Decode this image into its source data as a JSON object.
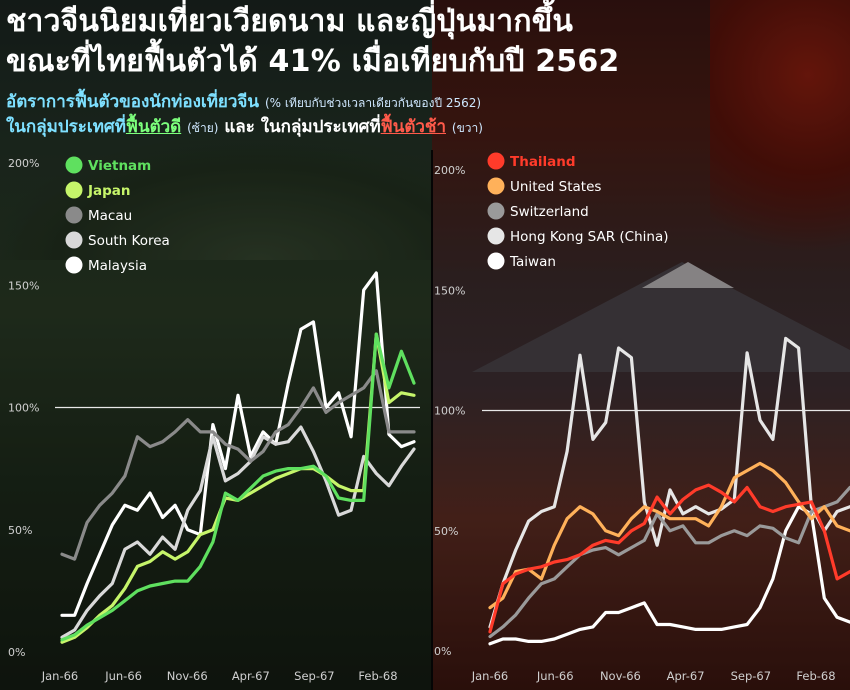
{
  "title": {
    "line1": "ชาวจีนนิยมเที่ยวเวียดนาม และญี่ปุ่นมากขึ้น",
    "line2": "ขณะที่ไทยฟื้นตัวได้ 41% เมื่อเทียบกับปี 2562"
  },
  "subtitle": {
    "line1_main": "อัตราการฟื้นตัวของนักท่องเที่ยวจีน",
    "line1_note": "(% เทียบกับช่วงเวลาเดียวกันของปี 2562)",
    "line2_part1": "ในกลุ่มประเทศที่",
    "line2_good": "ฟื้นตัวดี",
    "line2_left": "(ซ้าย)",
    "line2_and": "และ ในกลุ่มประเทศที่",
    "line2_slow": "ฟื้นตัวช้า",
    "line2_right": "(ขวา)"
  },
  "colors": {
    "vietnam": "#5fe05f",
    "japan": "#c6f56a",
    "macau": "#8a8a8a",
    "south_korea": "#d9d9d9",
    "malaysia": "#ffffff",
    "thailand": "#ff3b2a",
    "united_states": "#ffb15a",
    "switzerland": "#9a9a9a",
    "hong_kong": "#e6e6e6",
    "taiwan": "#ffffff"
  },
  "chart_data": [
    {
      "type": "line",
      "ylim": [
        0,
        200
      ],
      "y_ticks": [
        "0%",
        "50%",
        "100%",
        "150%",
        "200%"
      ],
      "x_tick_labels": [
        "Jan-66",
        "Jun-66",
        "Nov-66",
        "Apr-67",
        "Sep-67",
        "Feb-68"
      ],
      "reference_line": 100,
      "x": [
        "Jan-66",
        "Feb-66",
        "Mar-66",
        "Apr-66",
        "May-66",
        "Jun-66",
        "Jul-66",
        "Aug-66",
        "Sep-66",
        "Oct-66",
        "Nov-66",
        "Dec-66",
        "Jan-67",
        "Feb-67",
        "Mar-67",
        "Apr-67",
        "May-67",
        "Jun-67",
        "Jul-67",
        "Aug-67",
        "Sep-67",
        "Oct-67",
        "Nov-67",
        "Dec-67",
        "Jan-68",
        "Feb-68",
        "Mar-68",
        "Apr-68",
        "May-68"
      ],
      "series": [
        {
          "name": "Vietnam",
          "color": "#5fe05f",
          "values": [
            5,
            7,
            11,
            14,
            17,
            21,
            25,
            27,
            28,
            29,
            29,
            35,
            45,
            65,
            62,
            67,
            72,
            74,
            75,
            75,
            76,
            72,
            63,
            62,
            62,
            130,
            108,
            123,
            110
          ]
        },
        {
          "name": "Japan",
          "color": "#c6f56a",
          "values": [
            4,
            6,
            10,
            15,
            19,
            26,
            35,
            37,
            41,
            38,
            41,
            48,
            50,
            63,
            62,
            65,
            68,
            71,
            73,
            75,
            75,
            72,
            68,
            66,
            66,
            130,
            102,
            106,
            105
          ]
        },
        {
          "name": "Macau",
          "color": "#8a8a8a",
          "values": [
            40,
            38,
            53,
            60,
            65,
            72,
            88,
            84,
            86,
            90,
            95,
            90,
            90,
            85,
            83,
            78,
            82,
            90,
            93,
            100,
            108,
            98,
            102,
            105,
            108,
            115,
            90,
            90,
            90
          ]
        },
        {
          "name": "South Korea",
          "color": "#d9d9d9",
          "values": [
            6,
            9,
            17,
            23,
            28,
            42,
            45,
            40,
            47,
            42,
            58,
            66,
            88,
            70,
            73,
            78,
            88,
            85,
            86,
            92,
            82,
            70,
            56,
            58,
            80,
            73,
            68,
            76,
            83
          ]
        },
        {
          "name": "Malaysia",
          "color": "#ffffff",
          "values": [
            15,
            15,
            28,
            40,
            52,
            60,
            58,
            65,
            55,
            60,
            50,
            48,
            93,
            75,
            105,
            80,
            90,
            85,
            110,
            132,
            135,
            100,
            106,
            88,
            148,
            155,
            89,
            84,
            86
          ]
        }
      ]
    },
    {
      "type": "line",
      "ylim": [
        0,
        200
      ],
      "y_ticks": [
        "0%",
        "50%",
        "100%",
        "150%",
        "200%"
      ],
      "x_tick_labels": [
        "Jan-66",
        "Jun-66",
        "Nov-66",
        "Apr-67",
        "Sep-67",
        "Feb-68"
      ],
      "reference_line": 100,
      "x": [
        "Jan-66",
        "Feb-66",
        "Mar-66",
        "Apr-66",
        "May-66",
        "Jun-66",
        "Jul-66",
        "Aug-66",
        "Sep-66",
        "Oct-66",
        "Nov-66",
        "Dec-66",
        "Jan-67",
        "Feb-67",
        "Mar-67",
        "Apr-67",
        "May-67",
        "Jun-67",
        "Jul-67",
        "Aug-67",
        "Sep-67",
        "Oct-67",
        "Nov-67",
        "Dec-67",
        "Jan-68",
        "Feb-68",
        "Mar-68",
        "Apr-68",
        "May-68"
      ],
      "series": [
        {
          "name": "Thailand",
          "color": "#ff3b2a",
          "values": [
            8,
            28,
            32,
            34,
            35,
            37,
            38,
            40,
            44,
            46,
            45,
            50,
            53,
            64,
            57,
            63,
            67,
            69,
            66,
            62,
            68,
            60,
            58,
            60,
            61,
            62,
            50,
            30,
            33
          ]
        },
        {
          "name": "United States",
          "color": "#ffb15a",
          "values": [
            18,
            22,
            33,
            34,
            30,
            44,
            55,
            60,
            57,
            50,
            48,
            55,
            60,
            58,
            55,
            55,
            55,
            52,
            60,
            72,
            75,
            78,
            75,
            70,
            62,
            55,
            60,
            52,
            50
          ]
        },
        {
          "name": "Switzerland",
          "color": "#9a9a9a",
          "values": [
            6,
            10,
            15,
            22,
            28,
            30,
            35,
            40,
            42,
            43,
            40,
            43,
            46,
            57,
            50,
            52,
            45,
            45,
            48,
            50,
            48,
            52,
            51,
            47,
            45,
            58,
            60,
            62,
            68
          ]
        },
        {
          "name": "Hong Kong SAR (China)",
          "color": "#e6e6e6",
          "values": [
            10,
            28,
            42,
            54,
            58,
            60,
            83,
            123,
            88,
            95,
            126,
            122,
            62,
            44,
            67,
            57,
            60,
            57,
            59,
            63,
            124,
            96,
            88,
            130,
            126,
            60,
            50,
            58,
            60
          ]
        },
        {
          "name": "Taiwan",
          "color": "#ffffff",
          "values": [
            3,
            5,
            5,
            4,
            4,
            5,
            7,
            9,
            10,
            16,
            16,
            18,
            20,
            11,
            11,
            10,
            9,
            9,
            9,
            10,
            11,
            18,
            30,
            50,
            60,
            57,
            22,
            14,
            12
          ]
        }
      ]
    }
  ]
}
